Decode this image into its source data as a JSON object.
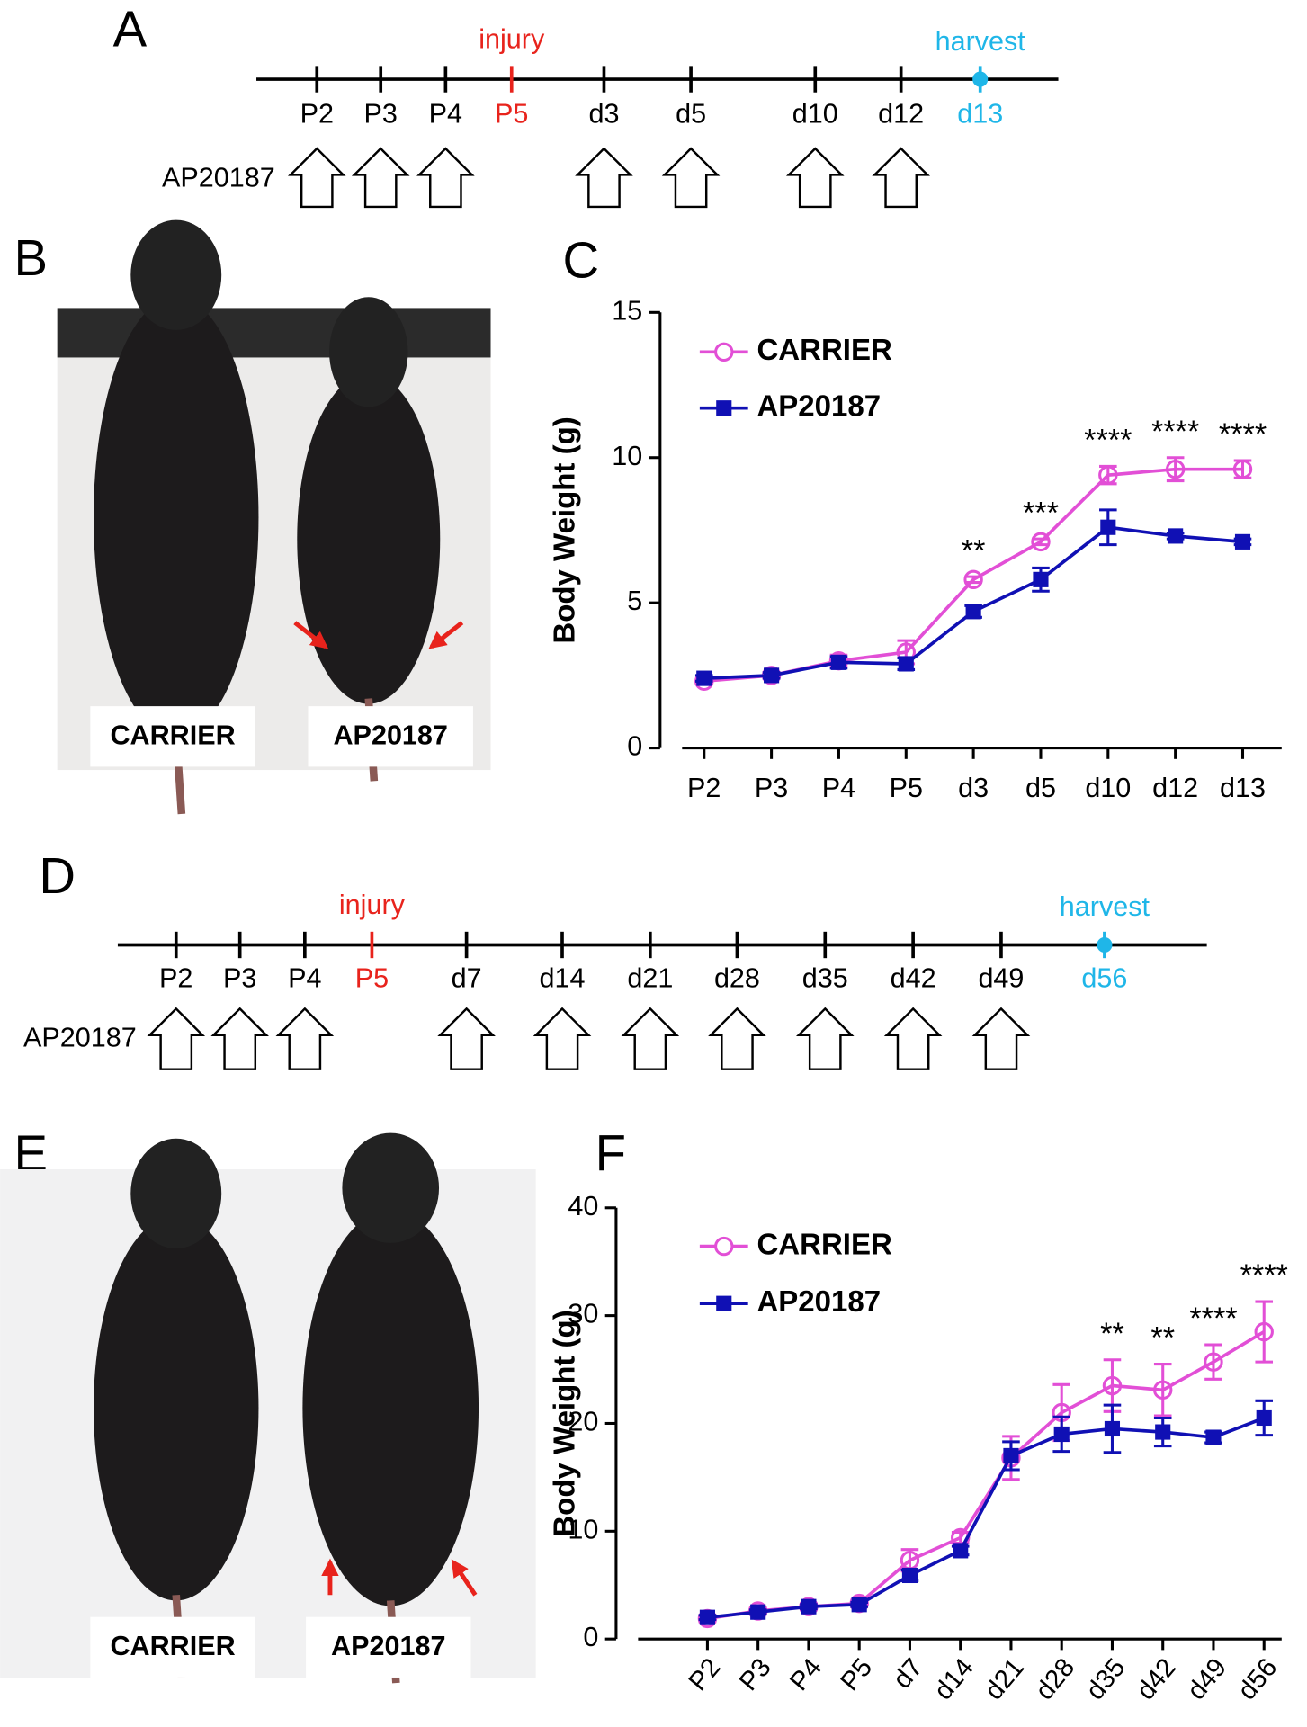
{
  "timelines": [
    {
      "letter": "A",
      "ticks": [
        "P2",
        "P3",
        "P4",
        "P5",
        "d3",
        "d5",
        "d10",
        "d12",
        "d13"
      ],
      "injury": "injury",
      "harvest": "harvest",
      "drug": "AP20187"
    },
    {
      "letter": "D",
      "ticks": [
        "P2",
        "P3",
        "P4",
        "P5",
        "d7",
        "d14",
        "d21",
        "d28",
        "d35",
        "d42",
        "d49",
        "d56"
      ],
      "injury": "injury",
      "harvest": "harvest",
      "drug": "AP20187"
    }
  ],
  "photos": [
    {
      "letter": "B",
      "labels": [
        "CARRIER",
        "AP20187"
      ]
    },
    {
      "letter": "E",
      "labels": [
        "CARRIER",
        "AP20187"
      ]
    }
  ],
  "chart_data": [
    {
      "type": "line",
      "panel_label": "C",
      "ylabel": "Body Weight (g)",
      "categories": [
        "P2",
        "P3",
        "P4",
        "P5",
        "d3",
        "d5",
        "d10",
        "d12",
        "d13"
      ],
      "series": [
        {
          "name": "CARRIER",
          "color": "#e24fd6",
          "marker": "open-circle",
          "values": [
            2.3,
            2.5,
            3.0,
            3.3,
            5.8,
            7.1,
            9.4,
            9.6,
            9.6
          ],
          "errors": [
            0.1,
            0.1,
            0.2,
            0.4,
            0.1,
            0.1,
            0.3,
            0.4,
            0.3
          ]
        },
        {
          "name": "AP20187",
          "color": "#1010b4",
          "marker": "square",
          "values": [
            2.4,
            2.5,
            2.95,
            2.9,
            4.7,
            5.8,
            7.6,
            7.3,
            7.1
          ],
          "errors": [
            0.1,
            0.1,
            0.2,
            0.2,
            0.2,
            0.4,
            0.6,
            0.1,
            0.1
          ]
        }
      ],
      "annotations": [
        null,
        null,
        null,
        null,
        "**",
        "***",
        "****",
        "****",
        "****"
      ],
      "ylim": [
        0,
        15
      ],
      "yticks": [
        0,
        5,
        10,
        15
      ]
    },
    {
      "type": "line",
      "panel_label": "F",
      "ylabel": "Body Weight (g)",
      "categories": [
        "P2",
        "P3",
        "P4",
        "P5",
        "d7",
        "d14",
        "d21",
        "d28",
        "d35",
        "d42",
        "d49",
        "d56"
      ],
      "series": [
        {
          "name": "CARRIER",
          "color": "#e24fd6",
          "marker": "open-circle",
          "values": [
            1.9,
            2.6,
            3.0,
            3.3,
            7.3,
            9.4,
            16.8,
            21.0,
            23.5,
            23.1,
            25.7,
            28.5
          ],
          "errors": [
            0.3,
            0.3,
            0.3,
            0.3,
            1.0,
            0.5,
            2.0,
            2.6,
            2.4,
            2.4,
            1.6,
            2.8
          ]
        },
        {
          "name": "AP20187",
          "color": "#1010b4",
          "marker": "square",
          "values": [
            2.0,
            2.5,
            3.0,
            3.2,
            5.9,
            8.2,
            17.0,
            19.0,
            19.5,
            19.2,
            18.7,
            20.5
          ],
          "errors": [
            0.2,
            0.2,
            0.2,
            0.2,
            0.5,
            0.4,
            1.3,
            1.6,
            2.2,
            1.3,
            0.5,
            1.6
          ]
        }
      ],
      "annotations": [
        null,
        null,
        null,
        null,
        null,
        null,
        null,
        null,
        "**",
        "**",
        "****",
        "****"
      ],
      "ylim": [
        0,
        40
      ],
      "yticks": [
        0,
        10,
        20,
        30,
        40
      ]
    }
  ]
}
